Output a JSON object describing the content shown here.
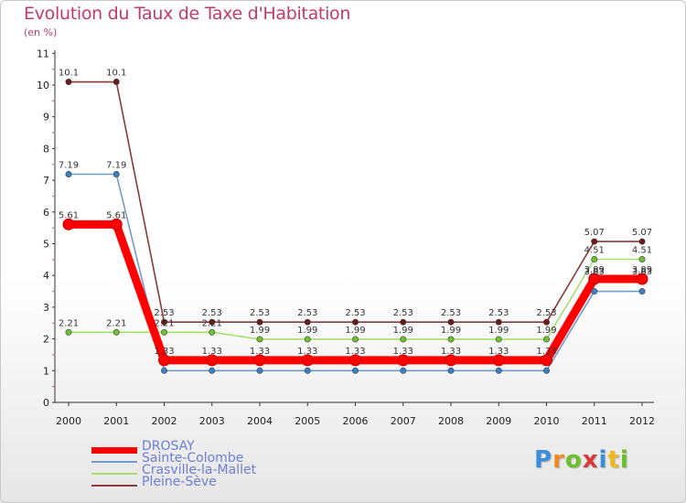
{
  "header": {
    "title": "Evolution du Taux de Taxe d'Habitation",
    "unit": "(en %)"
  },
  "brand": {
    "text": "Proxiti",
    "letters": [
      "P",
      "r",
      "o",
      "x",
      "i",
      "t",
      "i"
    ],
    "colors": [
      "#3a8fd8",
      "#f08a1a",
      "#6cbf2a",
      "#d83a3a",
      "#3a8fd8",
      "#f0b81a",
      "#6cbf2a"
    ]
  },
  "chart_data": {
    "type": "line",
    "title": "Evolution du Taux de Taxe d'Habitation",
    "ylabel": "(en %)",
    "xlabel": "",
    "x": [
      "2000",
      "2001",
      "2002",
      "2003",
      "2004",
      "2005",
      "2006",
      "2007",
      "2008",
      "2009",
      "2010",
      "2011",
      "2012"
    ],
    "ylim": [
      0,
      11
    ],
    "yticks": [
      "0",
      "1",
      "2",
      "3",
      "4",
      "5",
      "6",
      "7",
      "8",
      "9",
      "10",
      "11"
    ],
    "legend_position": "bottom-left",
    "series": [
      {
        "name": "DROSAY",
        "color": "#ff0000",
        "thick": true,
        "values": [
          5.61,
          5.61,
          1.33,
          1.33,
          1.33,
          1.33,
          1.33,
          1.33,
          1.33,
          1.33,
          1.33,
          3.89,
          3.89
        ],
        "labels": [
          "5.61",
          "5.61",
          "1.33",
          "1.33",
          "1.33",
          "1.33",
          "1.33",
          "1.33",
          "1.33",
          "1.33",
          "1.33",
          "3.89",
          "3.89"
        ]
      },
      {
        "name": "Sainte-Colombe",
        "color": "#6f9cc8",
        "marker": "#3a7fc0",
        "thick": false,
        "values": [
          7.19,
          7.19,
          1.0,
          1.0,
          1.0,
          1.0,
          1.0,
          1.0,
          1.0,
          1.0,
          1.0,
          3.5,
          3.5
        ],
        "labels": [
          "7.19",
          "7.19",
          "",
          "",
          "",
          "",
          "",
          "",
          "",
          "",
          "",
          "",
          ""
        ]
      },
      {
        "name": "Crasville-la-Mallet",
        "color": "#a6e06e",
        "marker": "#6cc030",
        "thick": false,
        "values": [
          2.21,
          2.21,
          2.21,
          2.21,
          1.99,
          1.99,
          1.99,
          1.99,
          1.99,
          1.99,
          1.99,
          4.51,
          4.51
        ],
        "labels": [
          "2.21",
          "2.21",
          "2.21",
          "2.21",
          "1.99",
          "1.99",
          "1.99",
          "1.99",
          "1.99",
          "1.99",
          "1.99",
          "4.51",
          "4.51"
        ]
      },
      {
        "name": "Pleine-Sève",
        "color": "#8a3a3a",
        "marker": "#6a1a1a",
        "thick": false,
        "values": [
          10.1,
          10.1,
          2.53,
          2.53,
          2.53,
          2.53,
          2.53,
          2.53,
          2.53,
          2.53,
          2.53,
          5.07,
          5.07
        ],
        "labels": [
          "10.1",
          "10.1",
          "2.53",
          "2.53",
          "2.53",
          "2.53",
          "2.53",
          "2.53",
          "2.53",
          "2.53",
          "2.53",
          "5.07",
          "5.07"
        ]
      },
      {
        "name": "_extra",
        "hidden": true,
        "labels": [
          "",
          "",
          "",
          "",
          "",
          "",
          "",
          "",
          "",
          "",
          "",
          "3.83",
          "3.83"
        ],
        "values": [
          null,
          null,
          null,
          null,
          null,
          null,
          null,
          null,
          null,
          null,
          null,
          3.83,
          3.83
        ]
      }
    ]
  },
  "legend": {
    "items": [
      "DROSAY",
      "Sainte-Colombe",
      "Crasville-la-Mallet",
      "Pleine-Sève"
    ]
  }
}
